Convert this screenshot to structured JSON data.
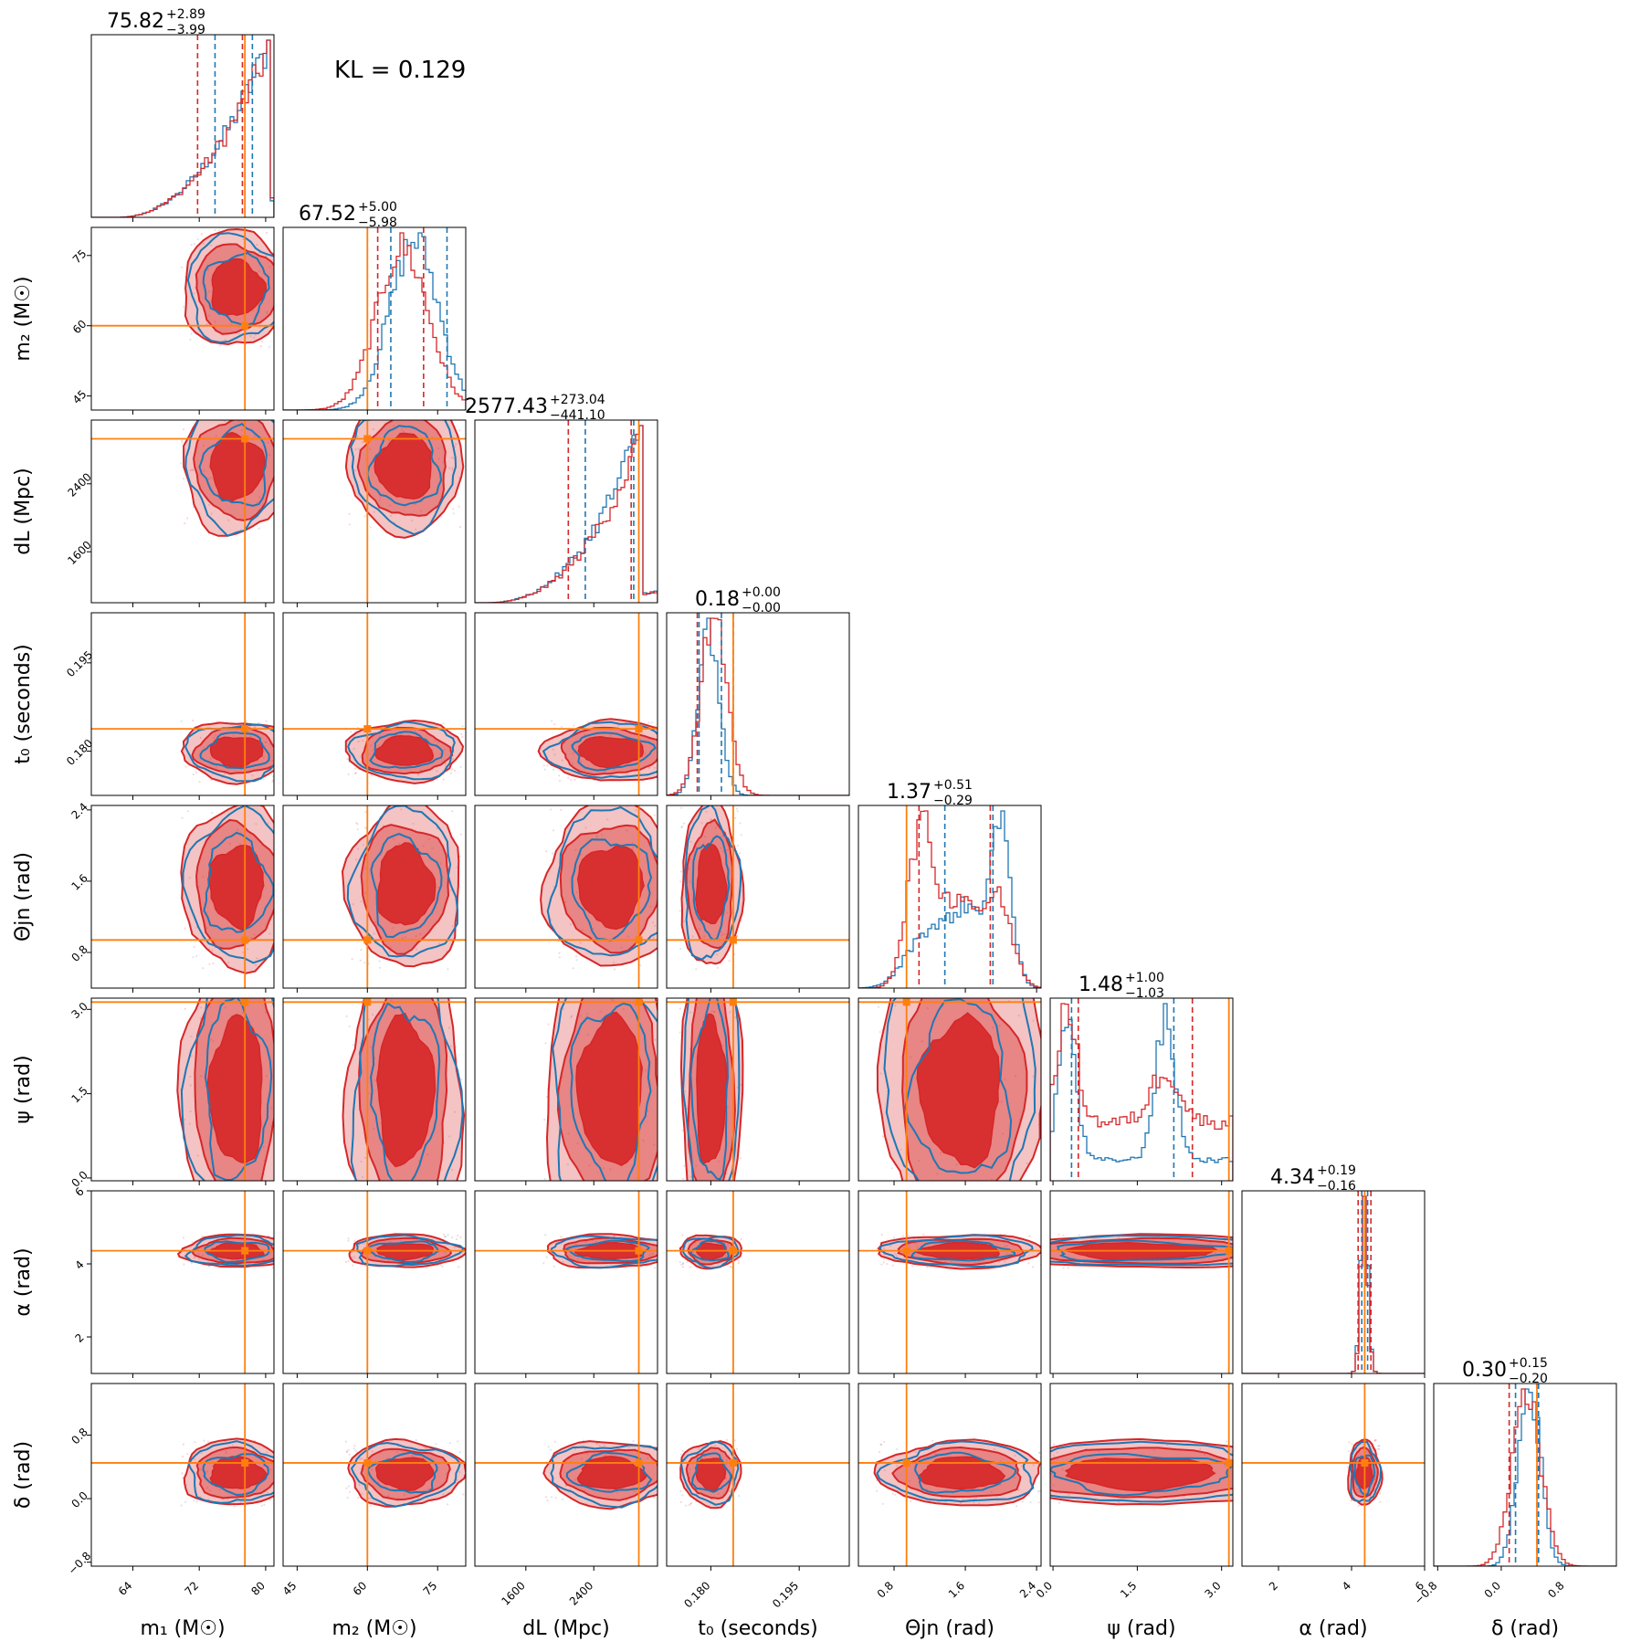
{
  "figure": {
    "kl_label": "KL = 0.129"
  },
  "colors": {
    "red": "#d62728",
    "blue": "#1f77b4",
    "truth": "#ff7f0e"
  },
  "chart_data": {
    "type": "corner",
    "annotation": "KL = 0.129",
    "parameters": [
      {
        "key": "m1",
        "label": "m₁ (M☉)",
        "range": [
          59,
          81
        ],
        "ticks": [
          "64",
          "72",
          "80"
        ],
        "ticks_v": [
          64,
          72,
          80
        ],
        "truth": 77.5,
        "median": "75.82",
        "plus": "+2.89",
        "minus": "−3.99",
        "red_quantiles": [
          71.8,
          77.2
        ],
        "blue_quantiles": [
          73.9,
          78.4
        ]
      },
      {
        "key": "m2",
        "label": "m₂ (M☉)",
        "range": [
          42,
          81
        ],
        "ticks": [
          "45",
          "60",
          "75"
        ],
        "ticks_v": [
          45,
          60,
          75
        ],
        "truth": 60,
        "median": "67.52",
        "plus": "+5.00",
        "minus": "−5.98",
        "red_quantiles": [
          62.2,
          72.0
        ],
        "blue_quantiles": [
          65.0,
          77.0
        ]
      },
      {
        "key": "dL",
        "label": "dL (Mpc)",
        "range": [
          1000,
          3150
        ],
        "ticks": [
          "1600",
          "2400"
        ],
        "ticks_v": [
          1600,
          2400
        ],
        "truth": 2930,
        "median": "2577.43",
        "plus": "+273.04",
        "minus": "−441.10",
        "red_quantiles": [
          2100,
          2840
        ],
        "blue_quantiles": [
          2300,
          2870
        ]
      },
      {
        "key": "t0",
        "label": "t₀ (seconds)",
        "range": [
          0.1725,
          0.2035
        ],
        "ticks": [
          "0.180",
          "0.195"
        ],
        "ticks_v": [
          0.18,
          0.195
        ],
        "truth": 0.1838,
        "median": "0.18",
        "plus": "+0.00",
        "minus": "−0.00",
        "red_quantiles": [
          0.1777,
          0.1838
        ],
        "blue_quantiles": [
          0.178,
          0.1818
        ]
      },
      {
        "key": "thetajn",
        "label": "Θjn (rad)",
        "range": [
          0.4,
          2.45
        ],
        "ticks": [
          "0.8",
          "1.6",
          "2.4"
        ],
        "ticks_v": [
          0.8,
          1.6,
          2.4
        ],
        "truth": 0.94,
        "median": "1.37",
        "plus": "+0.51",
        "minus": "−0.29",
        "red_quantiles": [
          1.08,
          1.88
        ],
        "blue_quantiles": [
          1.37,
          1.91
        ]
      },
      {
        "key": "psi",
        "label": "ψ (rad)",
        "range": [
          -0.05,
          3.2
        ],
        "ticks": [
          "0.0",
          "1.5",
          "3.0"
        ],
        "ticks_v": [
          0.0,
          1.5,
          3.0
        ],
        "truth": 3.13,
        "median": "1.48",
        "plus": "+1.00",
        "minus": "−1.03",
        "red_quantiles": [
          0.45,
          2.48
        ],
        "blue_quantiles": [
          0.33,
          2.15
        ]
      },
      {
        "key": "alpha",
        "label": "α (rad)",
        "range": [
          1,
          6
        ],
        "ticks": [
          "2",
          "4",
          "6"
        ],
        "ticks_v": [
          2,
          4,
          6
        ],
        "truth": 4.36,
        "median": "4.34",
        "plus": "+0.19",
        "minus": "−0.16",
        "red_quantiles": [
          4.18,
          4.53
        ],
        "blue_quantiles": [
          4.28,
          4.44
        ]
      },
      {
        "key": "delta",
        "label": "δ (rad)",
        "range": [
          -0.85,
          1.45
        ],
        "ticks": [
          "−0.8",
          "0.0",
          "0.8"
        ],
        "ticks_v": [
          -0.8,
          0.0,
          0.8
        ],
        "truth": 0.45,
        "median": "0.30",
        "plus": "+0.15",
        "minus": "−0.20",
        "red_quantiles": [
          0.1,
          0.45
        ],
        "blue_quantiles": [
          0.18,
          0.47
        ]
      }
    ]
  }
}
